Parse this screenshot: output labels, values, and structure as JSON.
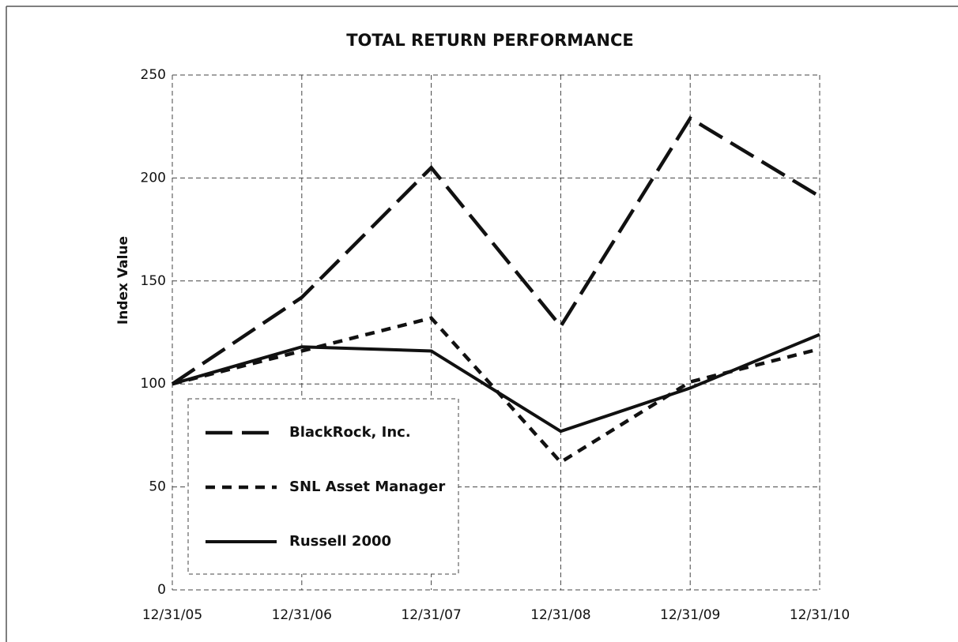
{
  "chart_data": {
    "type": "line",
    "title": "TOTAL RETURN PERFORMANCE",
    "y_label": "Index Value",
    "categories": [
      "12/31/05",
      "12/31/06",
      "12/31/07",
      "12/31/08",
      "12/31/09",
      "12/31/10"
    ],
    "series": [
      {
        "name": "BlackRock, Inc.",
        "color": "#111111",
        "dash": "long-dash",
        "values": [
          100,
          142,
          205,
          128,
          229,
          191
        ]
      },
      {
        "name": "SNL Asset Manager",
        "color": "#111111",
        "dash": "short-dash",
        "values": [
          100,
          116,
          132,
          62,
          101,
          117
        ]
      },
      {
        "name": "Russell 2000",
        "color": "#111111",
        "dash": "solid",
        "values": [
          100,
          118,
          116,
          77,
          98,
          124
        ]
      }
    ],
    "ylim": [
      0,
      250
    ],
    "yticks": [
      0,
      50,
      100,
      150,
      200,
      250
    ],
    "grid": true,
    "legend": "lower left"
  }
}
